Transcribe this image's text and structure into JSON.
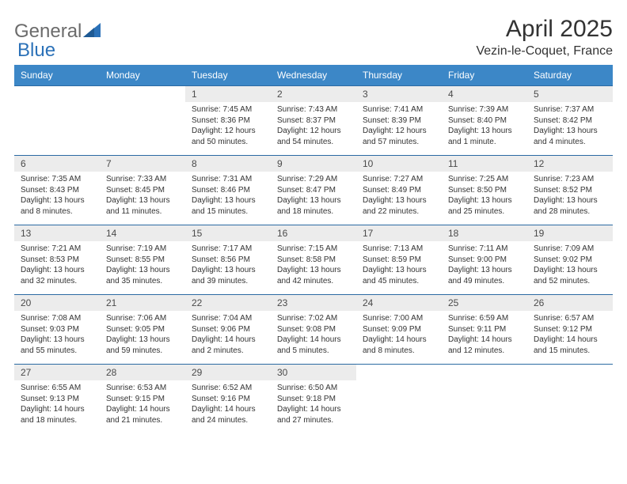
{
  "logo": {
    "text1": "General",
    "text2": "Blue"
  },
  "title": "April 2025",
  "location": "Vezin-le-Coquet, France",
  "colors": {
    "header_bg": "#3c87c7",
    "header_text": "#ffffff",
    "daynum_bg": "#ececec",
    "border": "#2b6aa3",
    "body_text": "#333333",
    "logo_gray": "#6b6b6b",
    "logo_blue": "#2b71b8"
  },
  "weekdays": [
    "Sunday",
    "Monday",
    "Tuesday",
    "Wednesday",
    "Thursday",
    "Friday",
    "Saturday"
  ],
  "weeks": [
    [
      null,
      null,
      {
        "n": "1",
        "sr": "Sunrise: 7:45 AM",
        "ss": "Sunset: 8:36 PM",
        "dl": "Daylight: 12 hours and 50 minutes."
      },
      {
        "n": "2",
        "sr": "Sunrise: 7:43 AM",
        "ss": "Sunset: 8:37 PM",
        "dl": "Daylight: 12 hours and 54 minutes."
      },
      {
        "n": "3",
        "sr": "Sunrise: 7:41 AM",
        "ss": "Sunset: 8:39 PM",
        "dl": "Daylight: 12 hours and 57 minutes."
      },
      {
        "n": "4",
        "sr": "Sunrise: 7:39 AM",
        "ss": "Sunset: 8:40 PM",
        "dl": "Daylight: 13 hours and 1 minute."
      },
      {
        "n": "5",
        "sr": "Sunrise: 7:37 AM",
        "ss": "Sunset: 8:42 PM",
        "dl": "Daylight: 13 hours and 4 minutes."
      }
    ],
    [
      {
        "n": "6",
        "sr": "Sunrise: 7:35 AM",
        "ss": "Sunset: 8:43 PM",
        "dl": "Daylight: 13 hours and 8 minutes."
      },
      {
        "n": "7",
        "sr": "Sunrise: 7:33 AM",
        "ss": "Sunset: 8:45 PM",
        "dl": "Daylight: 13 hours and 11 minutes."
      },
      {
        "n": "8",
        "sr": "Sunrise: 7:31 AM",
        "ss": "Sunset: 8:46 PM",
        "dl": "Daylight: 13 hours and 15 minutes."
      },
      {
        "n": "9",
        "sr": "Sunrise: 7:29 AM",
        "ss": "Sunset: 8:47 PM",
        "dl": "Daylight: 13 hours and 18 minutes."
      },
      {
        "n": "10",
        "sr": "Sunrise: 7:27 AM",
        "ss": "Sunset: 8:49 PM",
        "dl": "Daylight: 13 hours and 22 minutes."
      },
      {
        "n": "11",
        "sr": "Sunrise: 7:25 AM",
        "ss": "Sunset: 8:50 PM",
        "dl": "Daylight: 13 hours and 25 minutes."
      },
      {
        "n": "12",
        "sr": "Sunrise: 7:23 AM",
        "ss": "Sunset: 8:52 PM",
        "dl": "Daylight: 13 hours and 28 minutes."
      }
    ],
    [
      {
        "n": "13",
        "sr": "Sunrise: 7:21 AM",
        "ss": "Sunset: 8:53 PM",
        "dl": "Daylight: 13 hours and 32 minutes."
      },
      {
        "n": "14",
        "sr": "Sunrise: 7:19 AM",
        "ss": "Sunset: 8:55 PM",
        "dl": "Daylight: 13 hours and 35 minutes."
      },
      {
        "n": "15",
        "sr": "Sunrise: 7:17 AM",
        "ss": "Sunset: 8:56 PM",
        "dl": "Daylight: 13 hours and 39 minutes."
      },
      {
        "n": "16",
        "sr": "Sunrise: 7:15 AM",
        "ss": "Sunset: 8:58 PM",
        "dl": "Daylight: 13 hours and 42 minutes."
      },
      {
        "n": "17",
        "sr": "Sunrise: 7:13 AM",
        "ss": "Sunset: 8:59 PM",
        "dl": "Daylight: 13 hours and 45 minutes."
      },
      {
        "n": "18",
        "sr": "Sunrise: 7:11 AM",
        "ss": "Sunset: 9:00 PM",
        "dl": "Daylight: 13 hours and 49 minutes."
      },
      {
        "n": "19",
        "sr": "Sunrise: 7:09 AM",
        "ss": "Sunset: 9:02 PM",
        "dl": "Daylight: 13 hours and 52 minutes."
      }
    ],
    [
      {
        "n": "20",
        "sr": "Sunrise: 7:08 AM",
        "ss": "Sunset: 9:03 PM",
        "dl": "Daylight: 13 hours and 55 minutes."
      },
      {
        "n": "21",
        "sr": "Sunrise: 7:06 AM",
        "ss": "Sunset: 9:05 PM",
        "dl": "Daylight: 13 hours and 59 minutes."
      },
      {
        "n": "22",
        "sr": "Sunrise: 7:04 AM",
        "ss": "Sunset: 9:06 PM",
        "dl": "Daylight: 14 hours and 2 minutes."
      },
      {
        "n": "23",
        "sr": "Sunrise: 7:02 AM",
        "ss": "Sunset: 9:08 PM",
        "dl": "Daylight: 14 hours and 5 minutes."
      },
      {
        "n": "24",
        "sr": "Sunrise: 7:00 AM",
        "ss": "Sunset: 9:09 PM",
        "dl": "Daylight: 14 hours and 8 minutes."
      },
      {
        "n": "25",
        "sr": "Sunrise: 6:59 AM",
        "ss": "Sunset: 9:11 PM",
        "dl": "Daylight: 14 hours and 12 minutes."
      },
      {
        "n": "26",
        "sr": "Sunrise: 6:57 AM",
        "ss": "Sunset: 9:12 PM",
        "dl": "Daylight: 14 hours and 15 minutes."
      }
    ],
    [
      {
        "n": "27",
        "sr": "Sunrise: 6:55 AM",
        "ss": "Sunset: 9:13 PM",
        "dl": "Daylight: 14 hours and 18 minutes."
      },
      {
        "n": "28",
        "sr": "Sunrise: 6:53 AM",
        "ss": "Sunset: 9:15 PM",
        "dl": "Daylight: 14 hours and 21 minutes."
      },
      {
        "n": "29",
        "sr": "Sunrise: 6:52 AM",
        "ss": "Sunset: 9:16 PM",
        "dl": "Daylight: 14 hours and 24 minutes."
      },
      {
        "n": "30",
        "sr": "Sunrise: 6:50 AM",
        "ss": "Sunset: 9:18 PM",
        "dl": "Daylight: 14 hours and 27 minutes."
      },
      null,
      null,
      null
    ]
  ]
}
